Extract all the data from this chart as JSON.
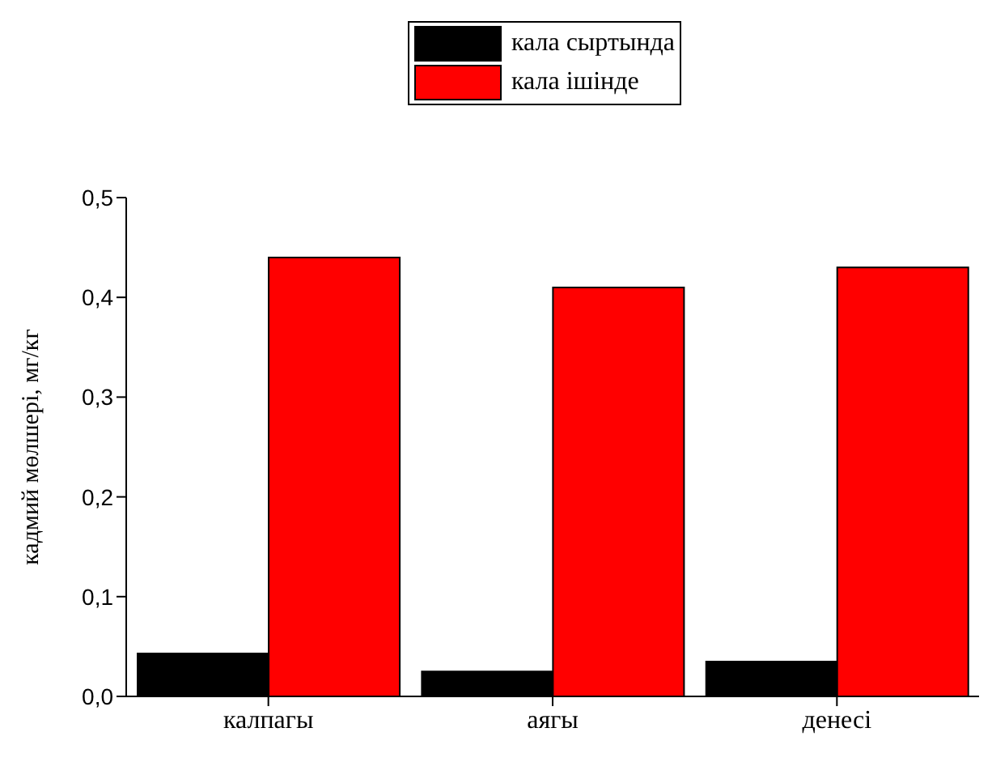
{
  "chart_data": {
    "type": "bar",
    "ylabel": "кадмий мөлшері, мг/кг",
    "categories": [
      "калпагы",
      "аягы",
      "денесі"
    ],
    "series": [
      {
        "name": "кала сыртында",
        "color": "#000000",
        "values": [
          0.043,
          0.025,
          0.035
        ]
      },
      {
        "name": "кала ішінде",
        "color": "#ff0000",
        "values": [
          0.44,
          0.41,
          0.43
        ]
      }
    ],
    "ylim": [
      0,
      0.5
    ],
    "yticks": [
      {
        "value": 0,
        "label": "0,0"
      },
      {
        "value": 0.1,
        "label": "0,1"
      },
      {
        "value": 0.2,
        "label": "0,2"
      },
      {
        "value": 0.3,
        "label": "0,3"
      },
      {
        "value": 0.4,
        "label": "0,4"
      },
      {
        "value": 0.5,
        "label": "0,5"
      }
    ],
    "grid": false,
    "legend": "top"
  }
}
